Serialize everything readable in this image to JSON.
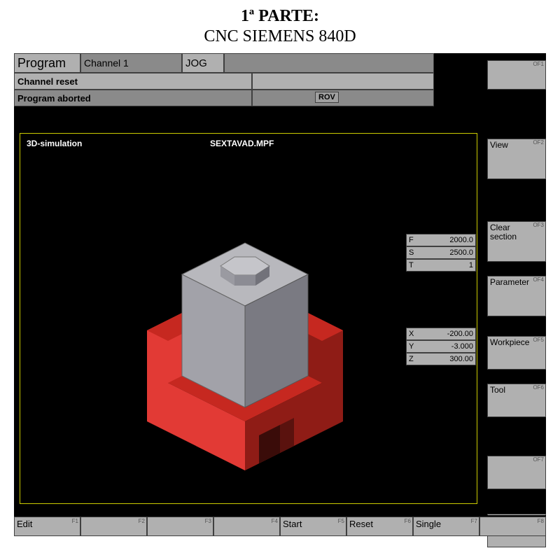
{
  "page": {
    "title1": "1ª PARTE:",
    "title2": "CNC SIEMENS 840D"
  },
  "header": {
    "program_label": "Program",
    "channel_label": "Channel 1",
    "mode_label": "JOG",
    "channel_status": "Channel reset",
    "program_status": "Program aborted",
    "rov_label": "ROV"
  },
  "simulation": {
    "title": "3D-simulation",
    "filename": "SEXTAVAD.MPF"
  },
  "readouts_fs": [
    {
      "label": "F",
      "value": "2000.0"
    },
    {
      "label": "S",
      "value": "2500.0"
    },
    {
      "label": "T",
      "value": "1"
    }
  ],
  "readouts_xyz": [
    {
      "label": "X",
      "value": "-200.00"
    },
    {
      "label": "Y",
      "value": "-3.000"
    },
    {
      "label": "Z",
      "value": "300.00"
    }
  ],
  "right_softkeys": [
    {
      "num": "OF1",
      "label": ""
    },
    {
      "num": "OF2",
      "label": "View"
    },
    {
      "num": "OF3",
      "label": "Clear\nsection"
    },
    {
      "num": "OF4",
      "label": "Parameter"
    },
    {
      "num": "OF5",
      "label": "Workpiece"
    },
    {
      "num": "OF6",
      "label": "Tool"
    },
    {
      "num": "OF7",
      "label": ""
    },
    {
      "num": "OF8",
      "label": ""
    }
  ],
  "bottom_softkeys": [
    {
      "num": "F1",
      "label": "Edit"
    },
    {
      "num": "F2",
      "label": ""
    },
    {
      "num": "F3",
      "label": ""
    },
    {
      "num": "F4",
      "label": ""
    },
    {
      "num": "F5",
      "label": "Start"
    },
    {
      "num": "F6",
      "label": "Reset"
    },
    {
      "num": "F7",
      "label": "Single"
    },
    {
      "num": "F8",
      "label": ""
    }
  ],
  "colors": {
    "panel_grey": "#b0b0b0",
    "panel_grey_dark": "#8a8a8a",
    "frame_yellow": "#cccc00",
    "workpiece_grey_light": "#b8b8bd",
    "workpiece_grey_mid": "#8c8c94",
    "workpiece_grey_dark": "#6a6a72",
    "fixture_red_light": "#e23a35",
    "fixture_red_mid": "#c62820",
    "fixture_red_dark": "#8f1c16"
  }
}
